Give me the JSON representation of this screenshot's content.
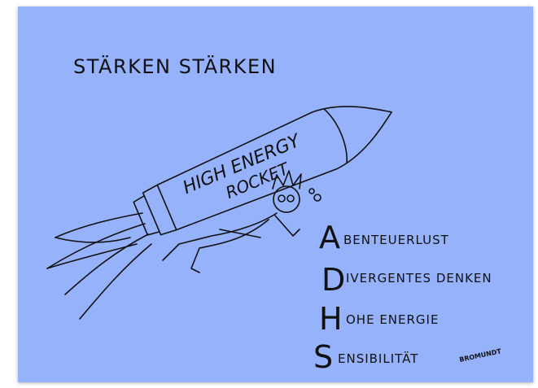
{
  "title": "STÄRKEN STÄRKEN",
  "rocket_label": [
    "HIGH ENERGY",
    "ROCKET"
  ],
  "acronym": [
    {
      "initial": "A",
      "rest": "BENTEUERLUST"
    },
    {
      "initial": "D",
      "rest": "IVERGENTES DENKEN"
    },
    {
      "initial": "H",
      "rest": "OHE ENERGIE"
    },
    {
      "initial": "S",
      "rest": "ENSIBILITÄT"
    }
  ],
  "signature": "BROMUNDT"
}
